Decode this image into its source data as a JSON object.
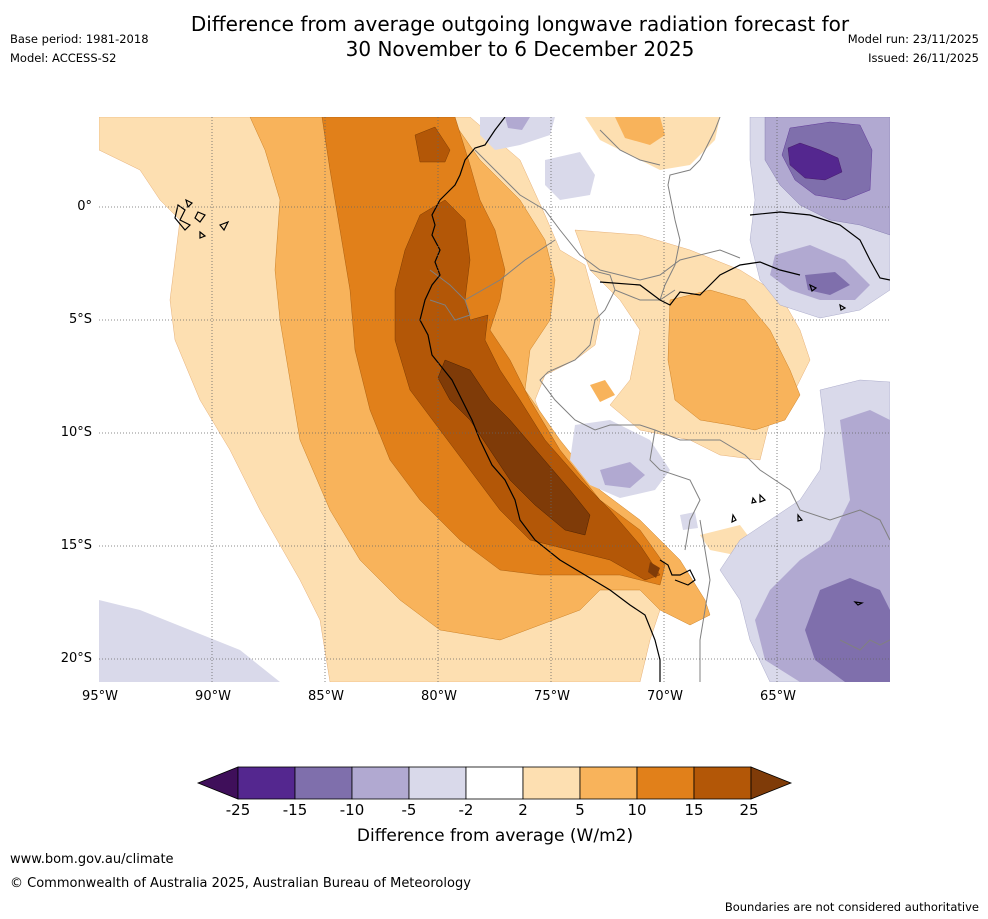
{
  "title": {
    "line1": "Difference from average outgoing longwave radiation forecast for",
    "line2": "30 November to 6 December 2025"
  },
  "meta": {
    "base_period": "Base period: 1981-2018",
    "model": "Model: ACCESS-S2",
    "model_run": "Model run: 23/11/2025",
    "issued": "Issued: 26/11/2025"
  },
  "map": {
    "lat_labels": [
      "0°",
      "5°S",
      "10°S",
      "15°S",
      "20°S"
    ],
    "lon_labels": [
      "95°W",
      "90°W",
      "85°W",
      "80°W",
      "75°W",
      "70°W",
      "65°W"
    ]
  },
  "colorbar": {
    "tick_labels": [
      "-25",
      "-15",
      "-10",
      "-5",
      "-2",
      "2",
      "5",
      "10",
      "15",
      "25"
    ],
    "label": "Difference from average (W/m2)",
    "colors": [
      "#3f0f5a",
      "#54278f",
      "#7f6fac",
      "#b1a9d1",
      "#d9d9ea",
      "#ffffff",
      "#fddfb1",
      "#f8b35b",
      "#e1801a",
      "#b35707",
      "#7f3b08"
    ]
  },
  "footer": {
    "website": "www.bom.gov.au/climate",
    "copyright": "© Commonwealth of Australia 2025, Australian Bureau of Meteorology",
    "disclaimer": "Boundaries are not considered authoritative"
  }
}
